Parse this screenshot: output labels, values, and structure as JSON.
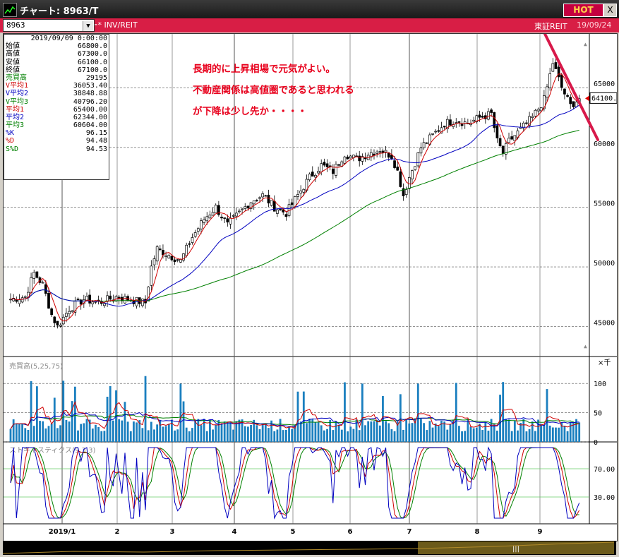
{
  "window": {
    "title": "チャート: 8963/T",
    "hot_label": "HOT",
    "close_label": "X"
  },
  "toolbar": {
    "symbol": "8963",
    "symbol_type": "INV/REIT",
    "market": "東証REIT",
    "date": "19/09/24"
  },
  "info_panel": {
    "datetime": "2019/09/09  0:00:00",
    "rows": [
      {
        "label": "始値",
        "value": "66800.0",
        "color": "#000000"
      },
      {
        "label": "高値",
        "value": "67300.0",
        "color": "#000000"
      },
      {
        "label": "安値",
        "value": "66100.0",
        "color": "#000000"
      },
      {
        "label": "終値",
        "value": "67100.0",
        "color": "#000000"
      },
      {
        "label": "売買高",
        "value": "29195",
        "color": "#008000"
      },
      {
        "label": "V平均1",
        "value": "36053.40",
        "color": "#d00000"
      },
      {
        "label": "V平均2",
        "value": "38848.88",
        "color": "#0000c0"
      },
      {
        "label": "V平均3",
        "value": "40796.20",
        "color": "#008000"
      },
      {
        "label": "平均1",
        "value": "65400.00",
        "color": "#d00000"
      },
      {
        "label": "平均2",
        "value": "62344.00",
        "color": "#0000c0"
      },
      {
        "label": "平均3",
        "value": "60604.00",
        "color": "#008000"
      },
      {
        "label": "%K",
        "value": "96.15",
        "color": "#0000c0"
      },
      {
        "label": "%D",
        "value": "94.48",
        "color": "#d00000"
      },
      {
        "label": "S%D",
        "value": "94.53",
        "color": "#008000"
      }
    ]
  },
  "annotation": {
    "lines": [
      "長期的に上昇相場で元気がよい。",
      "不動産関係は高値圏であると思われる",
      "が下降は少し先か・・・・"
    ]
  },
  "price_axis": {
    "labels": [
      "65000",
      "60000",
      "55000",
      "50000",
      "45000"
    ],
    "current": "64100.0"
  },
  "volume_panel": {
    "label": "売買高(5,25,75)",
    "unit": "×千",
    "labels": [
      "100",
      "50",
      "0"
    ]
  },
  "stoch_panel": {
    "label": "ストキャスティクス(9,3,3)",
    "labels": [
      "70.00",
      "30.00"
    ]
  },
  "x_axis": {
    "labels": [
      "2019/1",
      "2",
      "3",
      "4",
      "5",
      "6",
      "7",
      "8",
      "9"
    ]
  },
  "colors": {
    "up": "#000000",
    "down": "#000000",
    "ma1": "#d00000",
    "ma2": "#0000c0",
    "ma3": "#008000",
    "trend": "#d8194a",
    "volume": "#1a7fbf"
  },
  "chart_data": {
    "type": "candlestick",
    "price_range": [
      42500,
      69500
    ],
    "months": [
      "2019/1",
      "2",
      "3",
      "4",
      "5",
      "6",
      "7",
      "8",
      "9"
    ],
    "close_path": [
      [
        0,
        47300
      ],
      [
        5,
        47500
      ],
      [
        8,
        49500
      ],
      [
        11,
        48500
      ],
      [
        14,
        46000
      ],
      [
        16,
        45000
      ],
      [
        20,
        46500
      ],
      [
        25,
        47300
      ],
      [
        30,
        47000
      ],
      [
        36,
        47500
      ],
      [
        42,
        47200
      ],
      [
        46,
        47000
      ],
      [
        48,
        50000
      ],
      [
        50,
        51500
      ],
      [
        54,
        51000
      ],
      [
        58,
        50500
      ],
      [
        62,
        52500
      ],
      [
        66,
        54000
      ],
      [
        70,
        55000
      ],
      [
        74,
        53500
      ],
      [
        78,
        54500
      ],
      [
        82,
        55500
      ],
      [
        86,
        56000
      ],
      [
        90,
        55000
      ],
      [
        94,
        54500
      ],
      [
        98,
        56000
      ],
      [
        102,
        57500
      ],
      [
        106,
        58500
      ],
      [
        110,
        58000
      ],
      [
        114,
        59500
      ],
      [
        118,
        59000
      ],
      [
        122,
        59500
      ],
      [
        126,
        59800
      ],
      [
        130,
        59300
      ],
      [
        132,
        58000
      ],
      [
        134,
        56000
      ],
      [
        136,
        57500
      ],
      [
        140,
        60000
      ],
      [
        144,
        61000
      ],
      [
        148,
        62000
      ],
      [
        152,
        62300
      ],
      [
        156,
        62000
      ],
      [
        160,
        62500
      ],
      [
        164,
        62800
      ],
      [
        166,
        60500
      ],
      [
        168,
        59500
      ],
      [
        170,
        60500
      ],
      [
        174,
        61500
      ],
      [
        178,
        62500
      ],
      [
        182,
        64000
      ],
      [
        185,
        67100
      ],
      [
        188,
        65000
      ],
      [
        191,
        63500
      ],
      [
        194,
        64100
      ]
    ],
    "volume_scale": [
      0,
      140
    ],
    "stoch_levels": [
      70,
      30
    ]
  }
}
